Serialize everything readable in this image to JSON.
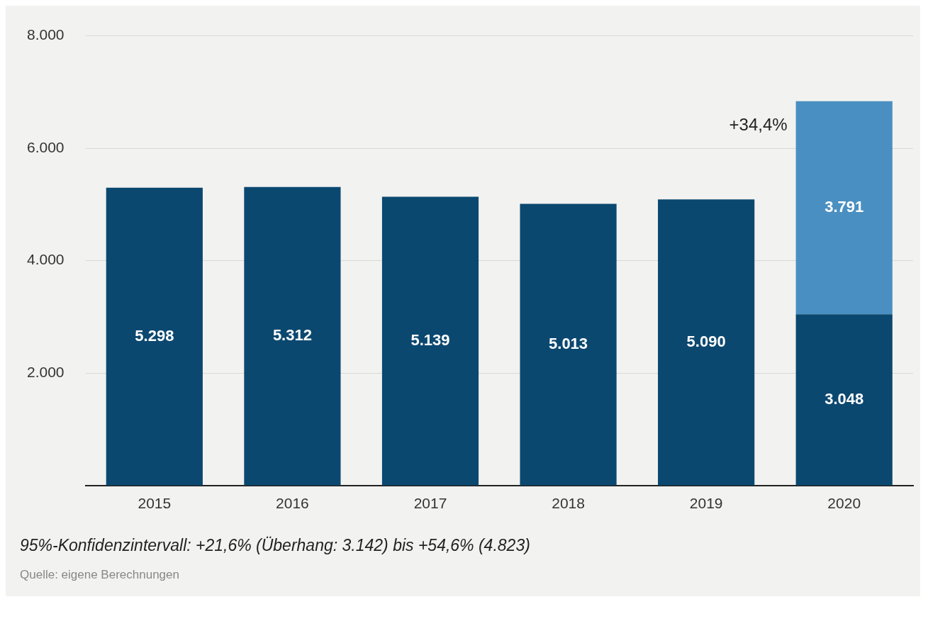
{
  "chart_data": {
    "type": "bar",
    "stacked": true,
    "categories": [
      "2015",
      "2016",
      "2017",
      "2018",
      "2019",
      "2020"
    ],
    "series": [
      {
        "color": "#0b4870",
        "values": [
          5298,
          5312,
          5139,
          5013,
          5090,
          3048
        ],
        "value_labels": [
          "5.298",
          "5.312",
          "5.139",
          "5.013",
          "5.090",
          "3.048"
        ]
      },
      {
        "color": "#4a8fc1",
        "values": [
          null,
          null,
          null,
          null,
          null,
          3791
        ],
        "value_labels": [
          null,
          null,
          null,
          null,
          null,
          "3.791"
        ]
      }
    ],
    "ylim": [
      0,
      8000
    ],
    "yticks": [
      {
        "value": 2000,
        "label": "2.000"
      },
      {
        "value": 4000,
        "label": "4.000"
      },
      {
        "value": 6000,
        "label": "6.000"
      },
      {
        "value": 8000,
        "label": "8.000"
      }
    ],
    "grid": "y",
    "legend": false,
    "annotations": [
      "+34,4%",
      "95%-Konfidenzintervall: +21,6% (Überhang: 3.142) bis +54,6% (4.823)",
      "Quelle: eigene Berechnungen"
    ]
  }
}
